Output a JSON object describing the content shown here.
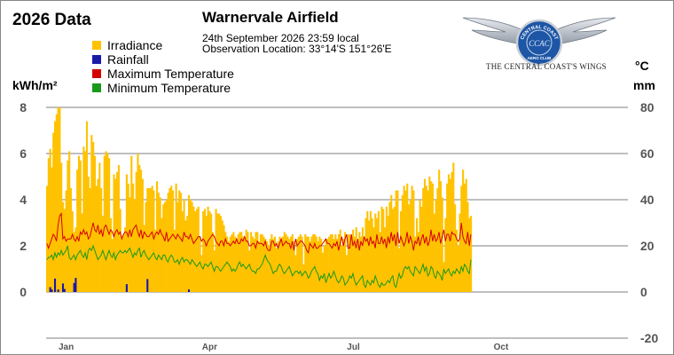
{
  "header": {
    "year_title": "2026 Data",
    "station": "Warnervale Airfield",
    "obs_date": "24th September 2026  23:59 local",
    "obs_location": "Observation Location:   33°14'S 151°26'E"
  },
  "logo": {
    "ring_text_top": "CENTRAL COAST",
    "ring_text_bottom": "AERO CLUB",
    "monogram": "CCAC",
    "caption": "THE CENTRAL COAST'S WINGS"
  },
  "units": {
    "left": "kWh/m²",
    "right_temp": "°C",
    "right_rain": "mm"
  },
  "colors": {
    "irradiance": "#ffc200",
    "rainfall": "#1a1aa8",
    "max_temp": "#d40000",
    "min_temp": "#1a9a1a",
    "grid": "#555555"
  },
  "chart_data": {
    "type": "bar",
    "legend": [
      "Irradiance",
      "Rainfall",
      "Maximum Temperature",
      "Minimum Temperature"
    ],
    "legend_position": "top-left",
    "grid": true,
    "x_range_days": [
      1,
      365
    ],
    "x_month_labels": [
      {
        "label": "Jan",
        "day": 1
      },
      {
        "label": "Apr",
        "day": 91
      },
      {
        "label": "Jul",
        "day": 182
      },
      {
        "label": "Oct",
        "day": 274
      }
    ],
    "y_left_ticks": [
      "0",
      "2",
      "4",
      "6",
      "8"
    ],
    "y_left_range": [
      0,
      8
    ],
    "y_right_ticks": [
      "-20",
      "0",
      "20",
      "40",
      "60",
      "80"
    ],
    "y_right_range": [
      -20,
      80
    ],
    "irradiance_kwh": {
      "Jan": [
        4.6,
        5.8,
        6.2,
        5.4,
        6.9,
        7.4,
        7.7,
        8.0,
        8.0,
        5.6,
        3.9,
        3.6,
        4.4,
        5.7,
        6.1,
        4.5,
        3.5,
        2.6,
        2.8,
        5.3,
        5.9,
        5.7,
        3.4,
        6.3,
        6.1,
        7.4,
        5.0,
        4.5,
        6.8,
        6.5,
        5.9
      ],
      "Feb": [
        4.6,
        4.9,
        5.6,
        4.5,
        3.3,
        5.9,
        6.1,
        6.0,
        5.8,
        3.2,
        2.3,
        5.1,
        4.9,
        5.2,
        5.5,
        3.6,
        2.3,
        2.5,
        2.8,
        5.1,
        4.7,
        4.1,
        5.9,
        4.7,
        4.0,
        5.2,
        6.0,
        5.5
      ],
      "Mar": [
        5.3,
        4.9,
        2.9,
        3.9,
        4.5,
        4.5,
        4.5,
        4.6,
        4.4,
        2.7,
        4.8,
        4.3,
        4.1,
        3.2,
        3.8,
        3.9,
        4.0,
        4.3,
        4.5,
        4.6,
        4.4,
        2.7,
        4.7,
        3.9,
        4.4,
        4.3,
        3.5,
        4.0,
        3.1,
        3.3,
        4.2
      ],
      "Apr": [
        4.0,
        3.9,
        3.7,
        3.5,
        3.6,
        3.7,
        2.4,
        1.6,
        3.5,
        3.6,
        3.3,
        3.7,
        3.5,
        3.4,
        2.6,
        1.8,
        3.6,
        3.4,
        3.4,
        3.3,
        3.1,
        2.9,
        2.6,
        2.4,
        2.2,
        2.4,
        2.5,
        2.6,
        2.4,
        2.3
      ],
      "May": [
        2.5,
        2.6,
        2.6,
        2.4,
        2.3,
        2.7,
        2.6,
        1.8,
        2.6,
        2.4,
        2.3,
        2.6,
        2.6,
        2.2,
        2.5,
        2.5,
        2.4,
        2.3,
        2.2,
        2.0,
        2.3,
        2.5,
        2.3,
        2.4,
        1.9,
        2.2,
        2.4,
        2.3,
        2.4,
        2.6,
        2.5
      ],
      "Jun": [
        2.4,
        2.3,
        2.4,
        2.5,
        2.2,
        1.6,
        2.3,
        2.4,
        2.5,
        2.4,
        1.2,
        2.5,
        2.4,
        2.4,
        2.2,
        2.4,
        2.5,
        2.5,
        2.4,
        2.2,
        2.4,
        2.3,
        1.7,
        2.0,
        2.3,
        2.3,
        2.4,
        2.5,
        2.5,
        2.3
      ],
      "Jul": [
        2.5,
        2.3,
        2.5,
        2.7,
        2.0,
        2.3,
        2.6,
        1.6,
        2.5,
        2.5,
        2.3,
        2.7,
        2.4,
        2.8,
        2.1,
        2.6,
        2.4,
        2.8,
        2.3,
        3.2,
        3.5,
        3.1,
        3.5,
        3.2,
        2.8,
        3.4,
        3.2,
        3.5,
        2.6,
        3.7,
        3.6
      ],
      "Aug": [
        2.8,
        3.7,
        3.3,
        3.9,
        4.2,
        3.6,
        3.7,
        4.4,
        4.4,
        1.9,
        3.5,
        4.2,
        4.6,
        4.4,
        4.7,
        3.8,
        4.0,
        4.6,
        4.4,
        2.4,
        3.2,
        2.6,
        4.0,
        3.7,
        4.5,
        4.9,
        4.6,
        4.4,
        5.0,
        4.8,
        4.7
      ],
      "Sep": [
        3.4,
        4.0,
        4.5,
        5.3,
        4.8,
        4.1,
        1.3,
        3.2,
        4.7,
        5.1,
        4.9,
        5.2,
        5.6,
        3.8,
        2.7,
        2.0,
        3.4,
        4.6,
        5.3,
        4.7,
        4.9,
        3.9,
        3.2,
        3.3
      ]
    },
    "rainfall_mm": {
      "Jan": [
        0,
        0,
        2.1,
        1.1,
        0,
        5.8,
        0,
        1.1,
        0,
        0,
        3.7,
        1.3,
        0,
        0,
        0,
        0,
        0,
        3.9,
        6.1,
        0,
        0,
        0,
        0,
        0,
        0,
        0,
        0,
        0,
        0,
        0,
        0
      ],
      "Feb": [
        0,
        0,
        0,
        0,
        0,
        0,
        0,
        0,
        0,
        0,
        0,
        0,
        0,
        0,
        0,
        0,
        0,
        0,
        0,
        3.4,
        0,
        0,
        0,
        0,
        0,
        0,
        0,
        0
      ],
      "Mar": [
        0,
        0,
        0,
        0,
        5.6,
        0,
        0,
        0,
        0,
        0,
        0,
        0,
        0,
        0,
        0,
        0,
        0,
        0,
        0,
        0,
        0,
        0,
        0,
        0,
        0,
        0,
        0,
        0,
        0,
        0,
        1.1
      ],
      "Apr": [
        0,
        0,
        0,
        0,
        0,
        0,
        0,
        0,
        0,
        0,
        0,
        0,
        0,
        0,
        0,
        0,
        0,
        0,
        0,
        0,
        0,
        0,
        0,
        0,
        0,
        0,
        0,
        0,
        0,
        0
      ],
      "May": [
        0,
        0,
        0,
        0,
        0,
        0,
        0,
        0,
        0,
        0,
        0,
        0,
        0,
        0,
        0,
        0,
        0,
        0,
        0,
        0,
        0,
        0,
        0,
        0,
        0,
        0,
        0,
        0,
        0,
        0,
        0
      ],
      "Jun": [
        0,
        0,
        0,
        0,
        0,
        0,
        0,
        0,
        0,
        0,
        0,
        0,
        0,
        0,
        0,
        0,
        0,
        0,
        0,
        0,
        0,
        0,
        0,
        0,
        0,
        0,
        0,
        0,
        0,
        0
      ],
      "Jul": [
        0,
        0,
        0,
        0,
        0,
        0,
        0,
        0,
        0,
        0,
        0,
        0,
        0,
        0,
        0,
        0,
        0,
        0,
        0,
        0,
        0,
        0,
        0,
        0,
        0,
        0,
        0,
        0,
        0,
        0,
        0
      ],
      "Aug": [
        0,
        0,
        0,
        0,
        0,
        0,
        0,
        0,
        0,
        0,
        0,
        0,
        0,
        0,
        0,
        0,
        0,
        0,
        0,
        0,
        0,
        0,
        0,
        0,
        0,
        0,
        0,
        0,
        0,
        0,
        0
      ],
      "Sep": [
        0,
        0,
        0,
        0,
        0,
        0,
        0,
        0,
        0,
        0,
        0,
        0,
        0,
        0,
        0,
        0,
        0,
        0,
        0,
        0,
        0,
        0,
        0,
        0
      ]
    },
    "max_temp_c": {
      "Jan": [
        21,
        19,
        21,
        23,
        25,
        24,
        22,
        29,
        33,
        34,
        23,
        24,
        22,
        23,
        23,
        23,
        25,
        23,
        22,
        24,
        22,
        26,
        25,
        27,
        25,
        26,
        23,
        24,
        27,
        30,
        27
      ],
      "Feb": [
        26,
        29,
        25,
        27,
        24,
        28,
        29,
        27,
        25,
        27,
        26,
        24,
        26,
        27,
        25,
        26,
        23,
        25,
        26,
        26,
        24,
        27,
        24,
        27,
        28,
        29,
        26,
        24
      ],
      "Mar": [
        27,
        23,
        26,
        25,
        24,
        24,
        25,
        26,
        23,
        25,
        26,
        25,
        27,
        25,
        24,
        22,
        26,
        22,
        23,
        24,
        25,
        24,
        23,
        25,
        24,
        23,
        22,
        26,
        24,
        24,
        23
      ],
      "Apr": [
        25,
        23,
        21,
        22,
        23,
        24,
        24,
        22,
        23,
        22,
        20,
        22,
        23,
        24,
        25,
        24,
        22,
        21,
        20,
        22,
        22,
        20,
        23,
        21,
        21,
        20,
        21,
        22,
        21,
        23
      ],
      "May": [
        21,
        21,
        23,
        22,
        24,
        22,
        22,
        20,
        20,
        21,
        21,
        19,
        22,
        21,
        21,
        21,
        20,
        22,
        19,
        18,
        18,
        22,
        22,
        20,
        21,
        19,
        21,
        23,
        20,
        21,
        22
      ],
      "Jun": [
        21,
        21,
        19,
        22,
        18,
        23,
        20,
        21,
        22,
        22,
        21,
        20,
        18,
        17,
        21,
        20,
        19,
        21,
        19,
        19,
        20,
        20,
        21,
        22,
        23,
        21,
        21,
        20,
        19,
        21
      ],
      "Jul": [
        20,
        22,
        18,
        21,
        24,
        20,
        23,
        25,
        19,
        19,
        25,
        20,
        22,
        19,
        23,
        18,
        22,
        20,
        24,
        22,
        23,
        20,
        24,
        21,
        22,
        19,
        25,
        21,
        21,
        24,
        21
      ],
      "Aug": [
        23,
        19,
        24,
        21,
        26,
        22,
        25,
        20,
        26,
        21,
        24,
        22,
        20,
        22,
        26,
        21,
        24,
        22,
        18,
        22,
        21,
        24,
        20,
        23,
        25,
        21,
        24,
        20,
        22,
        27,
        22
      ],
      "Sep": [
        25,
        22,
        23,
        26,
        21,
        24,
        27,
        22,
        25,
        25,
        22,
        26,
        25,
        25,
        23,
        22,
        23,
        30,
        24,
        22,
        21,
        26,
        20,
        25
      ]
    },
    "min_temp_c": {
      "Jan": [
        14,
        15,
        15,
        16,
        14,
        17,
        15,
        17,
        16,
        18,
        16,
        17,
        18,
        20,
        15,
        14,
        15,
        16,
        14,
        16,
        17,
        18,
        16,
        15,
        17,
        14,
        18,
        19,
        18,
        20,
        18
      ],
      "Feb": [
        16,
        14,
        15,
        16,
        18,
        16,
        14,
        16,
        18,
        16,
        15,
        17,
        14,
        16,
        17,
        18,
        17,
        17,
        18,
        17,
        18,
        19,
        17,
        15,
        17,
        16,
        18,
        19
      ],
      "Mar": [
        15,
        17,
        18,
        16,
        15,
        14,
        15,
        16,
        17,
        15,
        14,
        16,
        15,
        14,
        16,
        16,
        14,
        13,
        15,
        16,
        15,
        13,
        13,
        14,
        12,
        14,
        15,
        13,
        14,
        14,
        13
      ],
      "Apr": [
        12,
        14,
        13,
        12,
        11,
        12,
        13,
        11,
        10,
        12,
        12,
        11,
        12,
        13,
        11,
        9,
        11,
        11,
        10,
        9,
        10,
        11,
        12,
        13,
        12,
        11,
        9,
        10,
        9,
        10
      ],
      "May": [
        12,
        13,
        11,
        12,
        11,
        10,
        11,
        12,
        10,
        9,
        9,
        8,
        10,
        10,
        11,
        12,
        14,
        16,
        14,
        13,
        12,
        10,
        8,
        9,
        9,
        11,
        12,
        11,
        9,
        8,
        9
      ],
      "Jun": [
        10,
        11,
        9,
        7,
        8,
        9,
        9,
        8,
        9,
        7,
        8,
        9,
        8,
        6,
        7,
        9,
        10,
        11,
        9,
        8,
        5,
        7,
        6,
        8,
        4,
        6,
        8,
        6,
        7,
        9
      ],
      "Jul": [
        7,
        5,
        4,
        5,
        7,
        6,
        3,
        4,
        5,
        7,
        6,
        8,
        5,
        3,
        4,
        5,
        6,
        7,
        3,
        2,
        5,
        4,
        3,
        5,
        4,
        7,
        5,
        3,
        2,
        4,
        3
      ],
      "Aug": [
        3,
        4,
        5,
        4,
        6,
        7,
        3,
        2,
        5,
        8,
        6,
        7,
        10,
        11,
        10,
        11,
        9,
        8,
        7,
        11,
        10,
        9,
        8,
        10,
        12,
        9,
        11,
        7,
        8,
        11,
        10
      ],
      "Sep": [
        7,
        6,
        9,
        8,
        7,
        5,
        10,
        8,
        9,
        10,
        8,
        7,
        9,
        8,
        10,
        9,
        8,
        11,
        9,
        12,
        11,
        9,
        8,
        14
      ]
    }
  }
}
